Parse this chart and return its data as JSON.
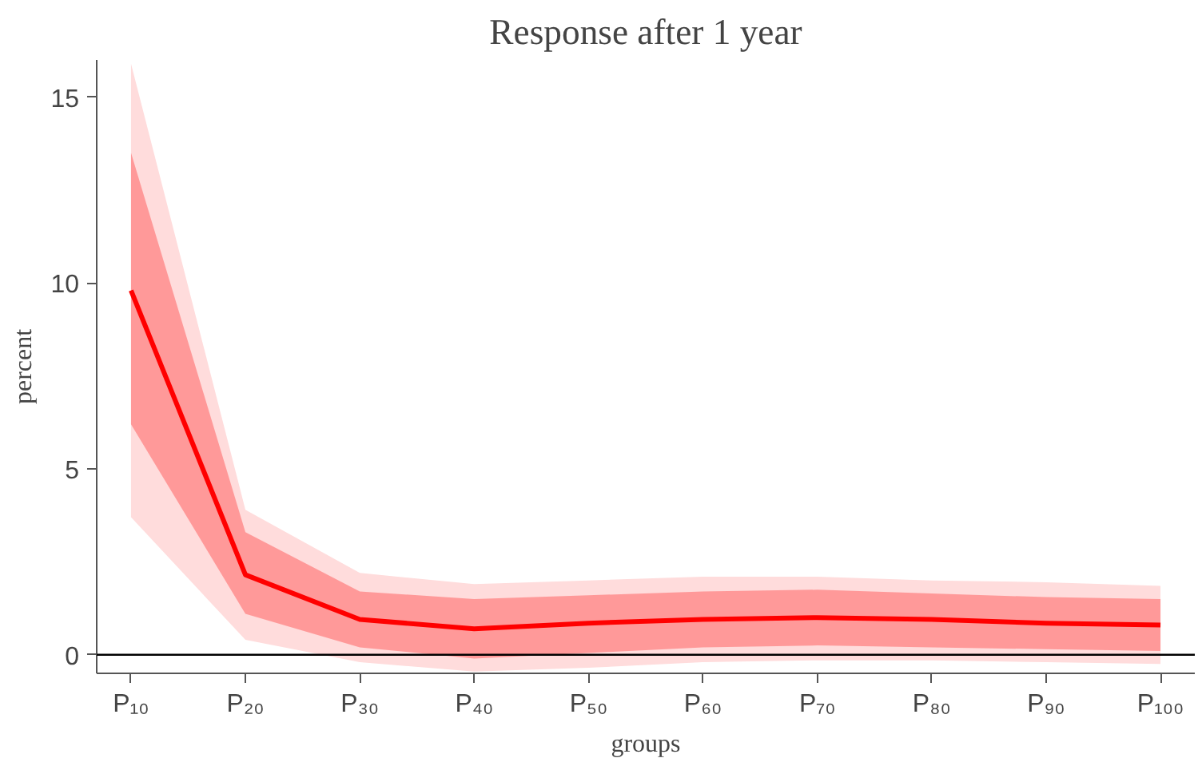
{
  "chart_data": {
    "type": "line",
    "title": "Response after 1 year",
    "xlabel": "groups",
    "ylabel": "percent",
    "categories": [
      "P₁₀",
      "P₂₀",
      "P₃₀",
      "P₄₀",
      "P₅₀",
      "P₆₀",
      "P₇₀",
      "P₈₀",
      "P₉₀",
      "P₁₀₀"
    ],
    "series": [
      {
        "color": "#ffdcdc",
        "values": [
          null,
          null,
          null,
          null,
          null,
          null,
          null,
          null,
          null,
          null
        ],
        "lower": [
          3.7,
          0.4,
          -0.2,
          -0.45,
          -0.35,
          -0.2,
          -0.15,
          -0.15,
          -0.2,
          -0.25
        ],
        "upper": [
          15.9,
          3.9,
          2.2,
          1.9,
          2.0,
          2.1,
          2.1,
          2.0,
          1.95,
          1.85
        ]
      },
      {
        "color": "#ff0000",
        "values": [
          9.8,
          2.15,
          0.95,
          0.7,
          0.85,
          0.95,
          1.0,
          0.95,
          0.85,
          0.8
        ],
        "lower": [
          6.2,
          1.1,
          0.2,
          -0.1,
          0.05,
          0.2,
          0.25,
          0.2,
          0.15,
          0.1
        ],
        "upper": [
          13.5,
          3.3,
          1.7,
          1.5,
          1.6,
          1.7,
          1.75,
          1.65,
          1.55,
          1.5
        ]
      }
    ],
    "ylim": [
      -0.5,
      16
    ],
    "yticks": [
      0,
      5,
      10,
      15
    ],
    "grid": false,
    "marker": "none",
    "line_style": "solid",
    "ref_lines": [
      {
        "axis": "y",
        "value": 0,
        "color": "#000000"
      }
    ]
  }
}
